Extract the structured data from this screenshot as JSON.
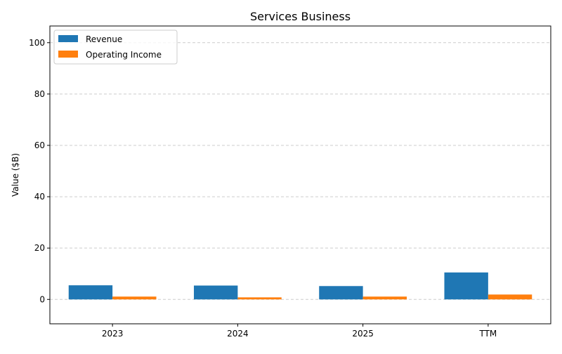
{
  "chart_data": {
    "type": "bar",
    "title": "Services Business",
    "xlabel": "",
    "ylabel": "Value ($B)",
    "categories": [
      "2023",
      "2024",
      "2025",
      "TTM"
    ],
    "series": [
      {
        "name": "Revenue",
        "color": "#1f77b4",
        "values": [
          5.5,
          5.4,
          5.2,
          10.5
        ]
      },
      {
        "name": "Operating Income",
        "color": "#ff7f0e",
        "values": [
          1.1,
          0.8,
          1.1,
          1.9
        ]
      }
    ],
    "ylim": [
      -9.5,
      106.5
    ],
    "yticks": [
      0,
      20,
      40,
      60,
      80,
      100
    ],
    "grid": "y-dashed",
    "legend": "top-left"
  }
}
